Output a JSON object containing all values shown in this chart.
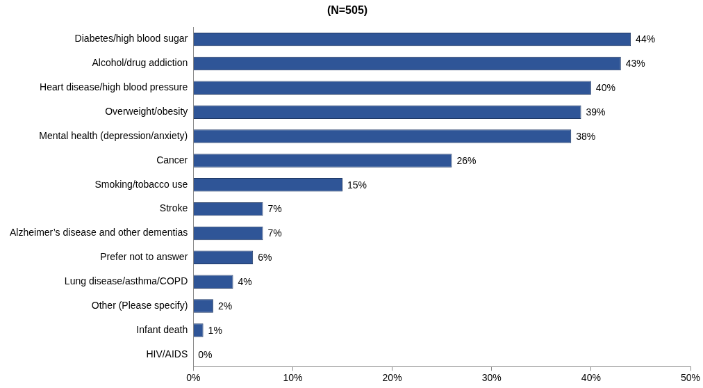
{
  "chart_data": {
    "type": "bar",
    "orientation": "horizontal",
    "title": "(N=505)",
    "categories": [
      "Diabetes/high blood sugar",
      "Alcohol/drug addiction",
      "Heart disease/high blood pressure",
      "Overweight/obesity",
      "Mental health (depression/anxiety)",
      "Cancer",
      "Smoking/tobacco use",
      "Stroke",
      "Alzheimer’s disease and other dementias",
      "Prefer not to answer",
      "Lung disease/asthma/COPD",
      "Other (Please specify)",
      "Infant death",
      "HIV/AIDS"
    ],
    "values": [
      44,
      43,
      40,
      39,
      38,
      26,
      15,
      7,
      7,
      6,
      4,
      2,
      1,
      0
    ],
    "value_labels": [
      "44%",
      "43%",
      "40%",
      "39%",
      "38%",
      "26%",
      "15%",
      "7%",
      "7%",
      "6%",
      "4%",
      "2%",
      "1%",
      "0%"
    ],
    "color": "#2f5597",
    "xlim": [
      0,
      50
    ],
    "xticks": [
      {
        "value": 0,
        "label": "0%"
      },
      {
        "value": 10,
        "label": "10%"
      },
      {
        "value": 20,
        "label": "20%"
      },
      {
        "value": 30,
        "label": "30%"
      },
      {
        "value": 40,
        "label": "40%"
      },
      {
        "value": 50,
        "label": "50%"
      }
    ],
    "grid": false,
    "legend": false
  }
}
